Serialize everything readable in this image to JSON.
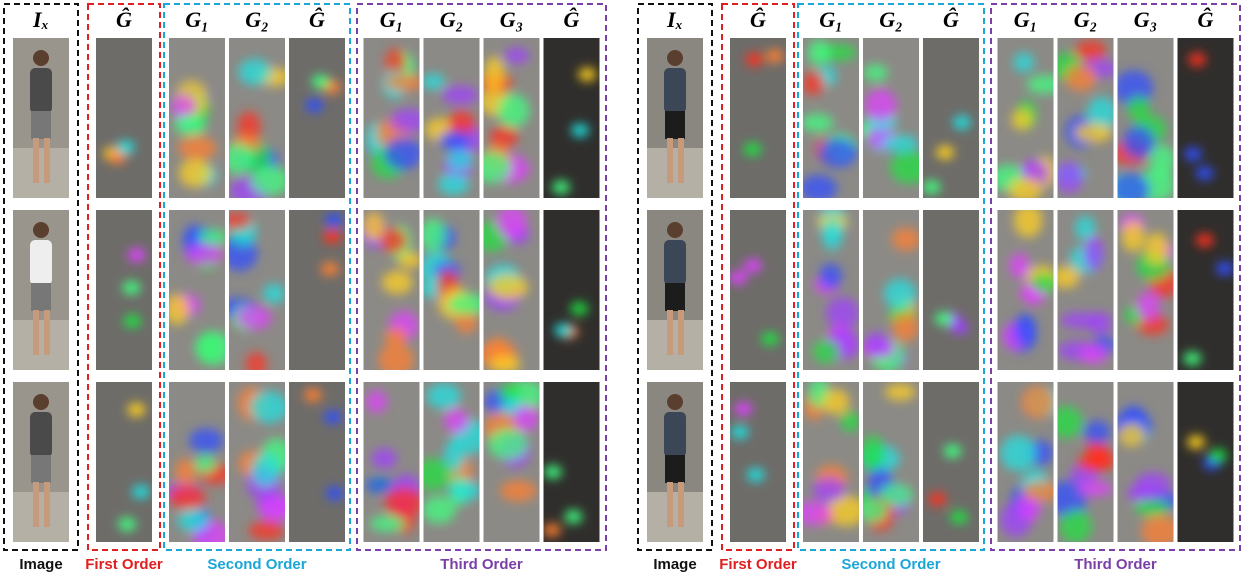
{
  "panels": [
    {
      "groups": [
        {
          "label": "Image",
          "headers": [
            "Iₓ"
          ]
        },
        {
          "label": "First Order",
          "headers": [
            "Ĝ"
          ]
        },
        {
          "label": "Second Order",
          "headers": [
            "G₁",
            "G₂",
            "Ĝ"
          ]
        },
        {
          "label": "Third Order",
          "headers": [
            "G₁",
            "G₂",
            "G₃",
            "Ĝ"
          ]
        }
      ]
    },
    {
      "groups": [
        {
          "label": "Image",
          "headers": [
            "Iₓ"
          ]
        },
        {
          "label": "First Order",
          "headers": [
            "Ĝ"
          ]
        },
        {
          "label": "Second Order",
          "headers": [
            "G₁",
            "G₂",
            "Ĝ"
          ]
        },
        {
          "label": "Third Order",
          "headers": [
            "G₁",
            "G₂",
            "G₃",
            "Ĝ"
          ]
        }
      ]
    }
  ]
}
